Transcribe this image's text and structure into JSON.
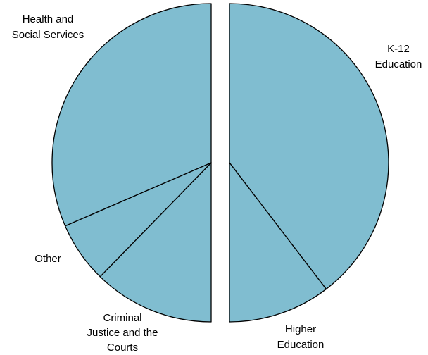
{
  "chart_data": {
    "type": "pie",
    "title": "",
    "unit": "percent",
    "slices": [
      {
        "label_lines": [
          "K-12",
          "Education"
        ],
        "value": 39.6
      },
      {
        "label_lines": [
          "Higher",
          "Education"
        ],
        "value": 10.4
      },
      {
        "label_lines": [
          "Criminal",
          "Justice and the",
          "Courts"
        ],
        "value": 12.3
      },
      {
        "label_lines": [
          "Other"
        ],
        "value": 6.2
      },
      {
        "label_lines": [
          "Health and",
          "Social Services"
        ],
        "value": 31.5
      }
    ],
    "exploded_slices": [
      "K-12 Education",
      "Higher Education"
    ],
    "colors": {
      "fill": "#80bdd0",
      "stroke": "#000000"
    }
  }
}
